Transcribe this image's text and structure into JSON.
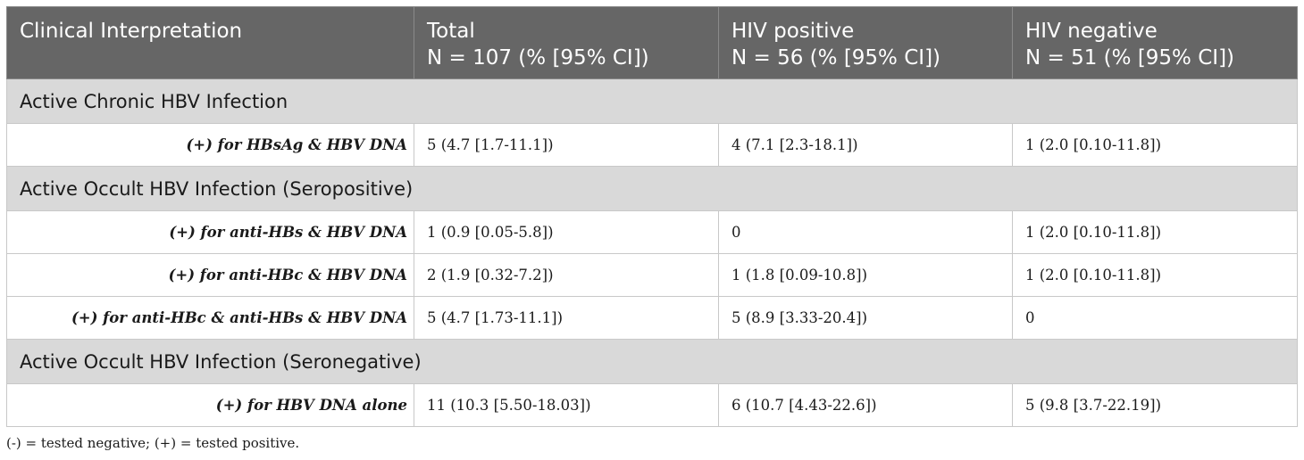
{
  "table": {
    "header": [
      {
        "line1": "Clinical Interpretation",
        "line2": ""
      },
      {
        "line1": "Total",
        "line2": "N = 107 (% [95% CI])"
      },
      {
        "line1": "HIV positive",
        "line2": "N = 56 (% [95% CI])"
      },
      {
        "line1": "HIV negative",
        "line2": "N = 51 (% [95% CI])"
      }
    ],
    "sections": [
      {
        "title": "Active Chronic HBV Infection",
        "rows": [
          {
            "label": "(+) for HBsAg & HBV DNA",
            "total": "5 (4.7 [1.7-11.1])",
            "hiv_pos": "4 (7.1 [2.3-18.1])",
            "hiv_neg": "1 (2.0 [0.10-11.8])"
          }
        ]
      },
      {
        "title": "Active Occult HBV Infection (Seropositive)",
        "rows": [
          {
            "label": "(+) for anti-HBs & HBV DNA",
            "total": "1 (0.9 [0.05-5.8])",
            "hiv_pos": "0",
            "hiv_neg": "1 (2.0 [0.10-11.8])"
          },
          {
            "label": "(+) for anti-HBc & HBV DNA",
            "total": "2 (1.9 [0.32-7.2])",
            "hiv_pos": "1 (1.8 [0.09-10.8])",
            "hiv_neg": "1 (2.0 [0.10-11.8])"
          },
          {
            "label": "(+) for anti-HBc & anti-HBs & HBV DNA",
            "total": "5 (4.7 [1.73-11.1])",
            "hiv_pos": "5 (8.9 [3.33-20.4])",
            "hiv_neg": "0"
          }
        ]
      },
      {
        "title": "Active Occult HBV Infection (Seronegative)",
        "rows": [
          {
            "label": "(+) for HBV DNA alone",
            "total": "11 (10.3 [5.50-18.03])",
            "hiv_pos": "6 (10.7 [4.43-22.6])",
            "hiv_neg": "5 (9.8 [3.7-22.19])"
          }
        ]
      }
    ]
  },
  "footnote": "(-) = tested negative; (+) = tested positive."
}
